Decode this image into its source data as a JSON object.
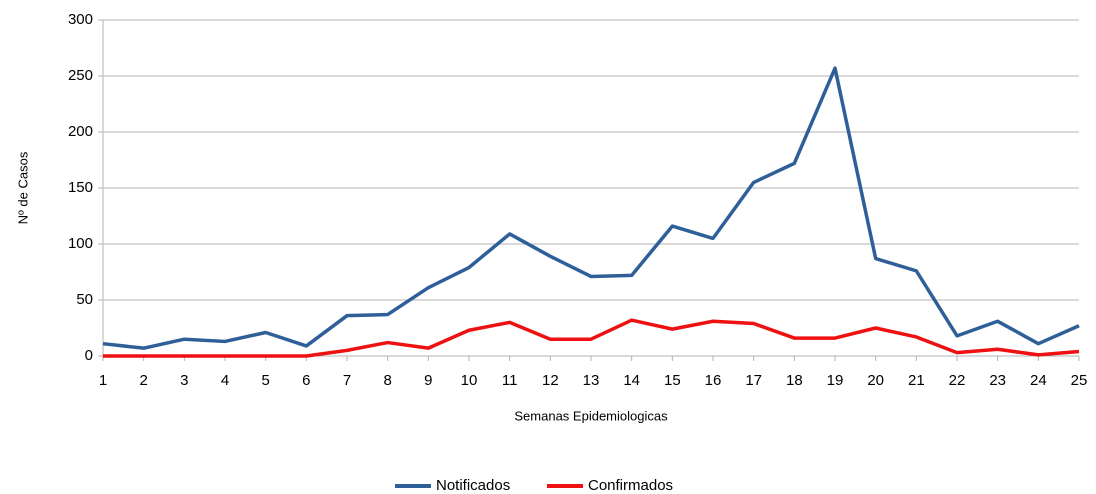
{
  "chart_data": {
    "type": "line",
    "y_label": "Nº de Casos",
    "x_label": "Semanas Epidemiologicas",
    "x": [
      1,
      2,
      3,
      4,
      5,
      6,
      7,
      8,
      9,
      10,
      11,
      12,
      13,
      14,
      15,
      16,
      17,
      18,
      19,
      20,
      21,
      22,
      23,
      24,
      25
    ],
    "series": [
      {
        "name": "Notificados",
        "color": "#2f5f98",
        "values": [
          11,
          7,
          15,
          13,
          21,
          9,
          36,
          37,
          61,
          79,
          109,
          89,
          71,
          72,
          116,
          105,
          155,
          172,
          257,
          87,
          76,
          18,
          31,
          11,
          27
        ]
      },
      {
        "name": "Confirmados",
        "color": "#ee1111",
        "values": [
          0,
          0,
          0,
          0,
          0,
          0,
          5,
          12,
          7,
          23,
          30,
          15,
          15,
          32,
          24,
          31,
          29,
          16,
          16,
          25,
          17,
          3,
          6,
          1,
          4
        ]
      }
    ],
    "xlim": [
      1,
      25
    ],
    "xticks": [
      1,
      2,
      3,
      4,
      5,
      6,
      7,
      8,
      9,
      10,
      11,
      12,
      13,
      14,
      15,
      16,
      17,
      18,
      19,
      20,
      21,
      22,
      23,
      24,
      25
    ],
    "ylim": [
      0,
      300
    ],
    "yticks": [
      0,
      50,
      100,
      150,
      200,
      250,
      300
    ],
    "grid": true,
    "legend": "bottom"
  }
}
